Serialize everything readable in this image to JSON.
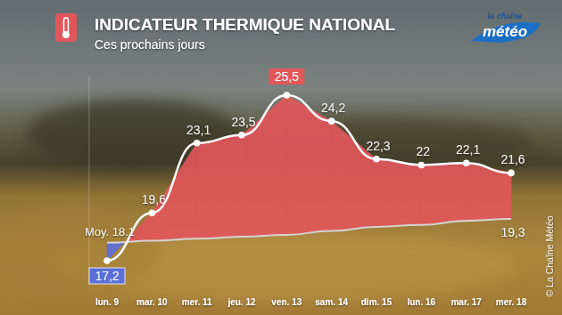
{
  "chart_data": {
    "type": "area",
    "title": "INDICATEUR THERMIQUE NATIONAL",
    "subtitle": "Ces prochains jours",
    "categories": [
      "lun. 9",
      "mar. 10",
      "mer. 11",
      "jeu. 12",
      "ven. 13",
      "sam. 14",
      "dim. 15",
      "lun. 16",
      "mar. 17",
      "mer. 18"
    ],
    "series": [
      {
        "color": "#e0575b",
        "values": [
          17.2,
          19.6,
          23.1,
          23.5,
          25.5,
          24.2,
          22.3,
          22,
          22.1,
          21.6
        ],
        "value_labels": [
          "17,2",
          "19,6",
          "23,1",
          "23,5",
          "25,5",
          "24,2",
          "22,3",
          "22",
          "22,1",
          "21,6"
        ]
      },
      {
        "color": "#d4d4d4",
        "values": [
          18.1,
          18.2,
          18.3,
          18.4,
          18.5,
          18.7,
          18.9,
          19.0,
          19.2,
          19.3
        ],
        "value_labels": [
          "Moy. 18.1",
          null,
          null,
          null,
          null,
          null,
          null,
          null,
          null,
          "19,3"
        ]
      }
    ],
    "ylim": [
      16,
      26.5
    ],
    "tick_labels": "x",
    "data_labels": true,
    "grid": false
  },
  "logo": [
    "la chaîne",
    "météo"
  ],
  "copyright": "© La Chaîne Météo"
}
